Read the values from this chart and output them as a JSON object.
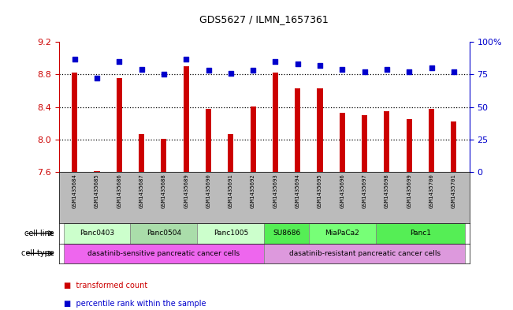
{
  "title": "GDS5627 / ILMN_1657361",
  "samples": [
    "GSM1435684",
    "GSM1435685",
    "GSM1435686",
    "GSM1435687",
    "GSM1435688",
    "GSM1435689",
    "GSM1435690",
    "GSM1435691",
    "GSM1435692",
    "GSM1435693",
    "GSM1435694",
    "GSM1435695",
    "GSM1435696",
    "GSM1435697",
    "GSM1435698",
    "GSM1435699",
    "GSM1435700",
    "GSM1435701"
  ],
  "transformed_count": [
    8.82,
    7.61,
    8.75,
    8.07,
    8.01,
    8.9,
    8.38,
    8.07,
    8.41,
    8.82,
    8.63,
    8.63,
    8.33,
    8.3,
    8.35,
    8.25,
    8.38,
    8.22
  ],
  "percentile_rank": [
    87,
    72,
    85,
    79,
    75,
    87,
    78,
    76,
    78,
    85,
    83,
    82,
    79,
    77,
    79,
    77,
    80,
    77
  ],
  "ylim_left": [
    7.6,
    9.2
  ],
  "ylim_right": [
    0,
    100
  ],
  "yticks_left": [
    7.6,
    8.0,
    8.4,
    8.8,
    9.2
  ],
  "yticks_right": [
    0,
    25,
    50,
    75,
    100
  ],
  "bar_color": "#cc0000",
  "dot_color": "#0000cc",
  "bar_width": 0.25,
  "cell_lines": [
    {
      "label": "Panc0403",
      "start": 0,
      "end": 3,
      "color": "#ccffcc"
    },
    {
      "label": "Panc0504",
      "start": 3,
      "end": 6,
      "color": "#aaddaa"
    },
    {
      "label": "Panc1005",
      "start": 6,
      "end": 9,
      "color": "#ccffcc"
    },
    {
      "label": "SU8686",
      "start": 9,
      "end": 11,
      "color": "#55ee55"
    },
    {
      "label": "MiaPaCa2",
      "start": 11,
      "end": 14,
      "color": "#77ff77"
    },
    {
      "label": "Panc1",
      "start": 14,
      "end": 18,
      "color": "#55ee55"
    }
  ],
  "cell_types": [
    {
      "label": "dasatinib-sensitive pancreatic cancer cells",
      "start": 0,
      "end": 9,
      "color": "#ee66ee"
    },
    {
      "label": "dasatinib-resistant pancreatic cancer cells",
      "start": 9,
      "end": 18,
      "color": "#dd99dd"
    }
  ],
  "legend_bar_label": "transformed count",
  "legend_dot_label": "percentile rank within the sample",
  "axis_left_color": "#cc0000",
  "axis_right_color": "#0000cc",
  "tick_area_color": "#bbbbbb",
  "background_color": "#ffffff"
}
